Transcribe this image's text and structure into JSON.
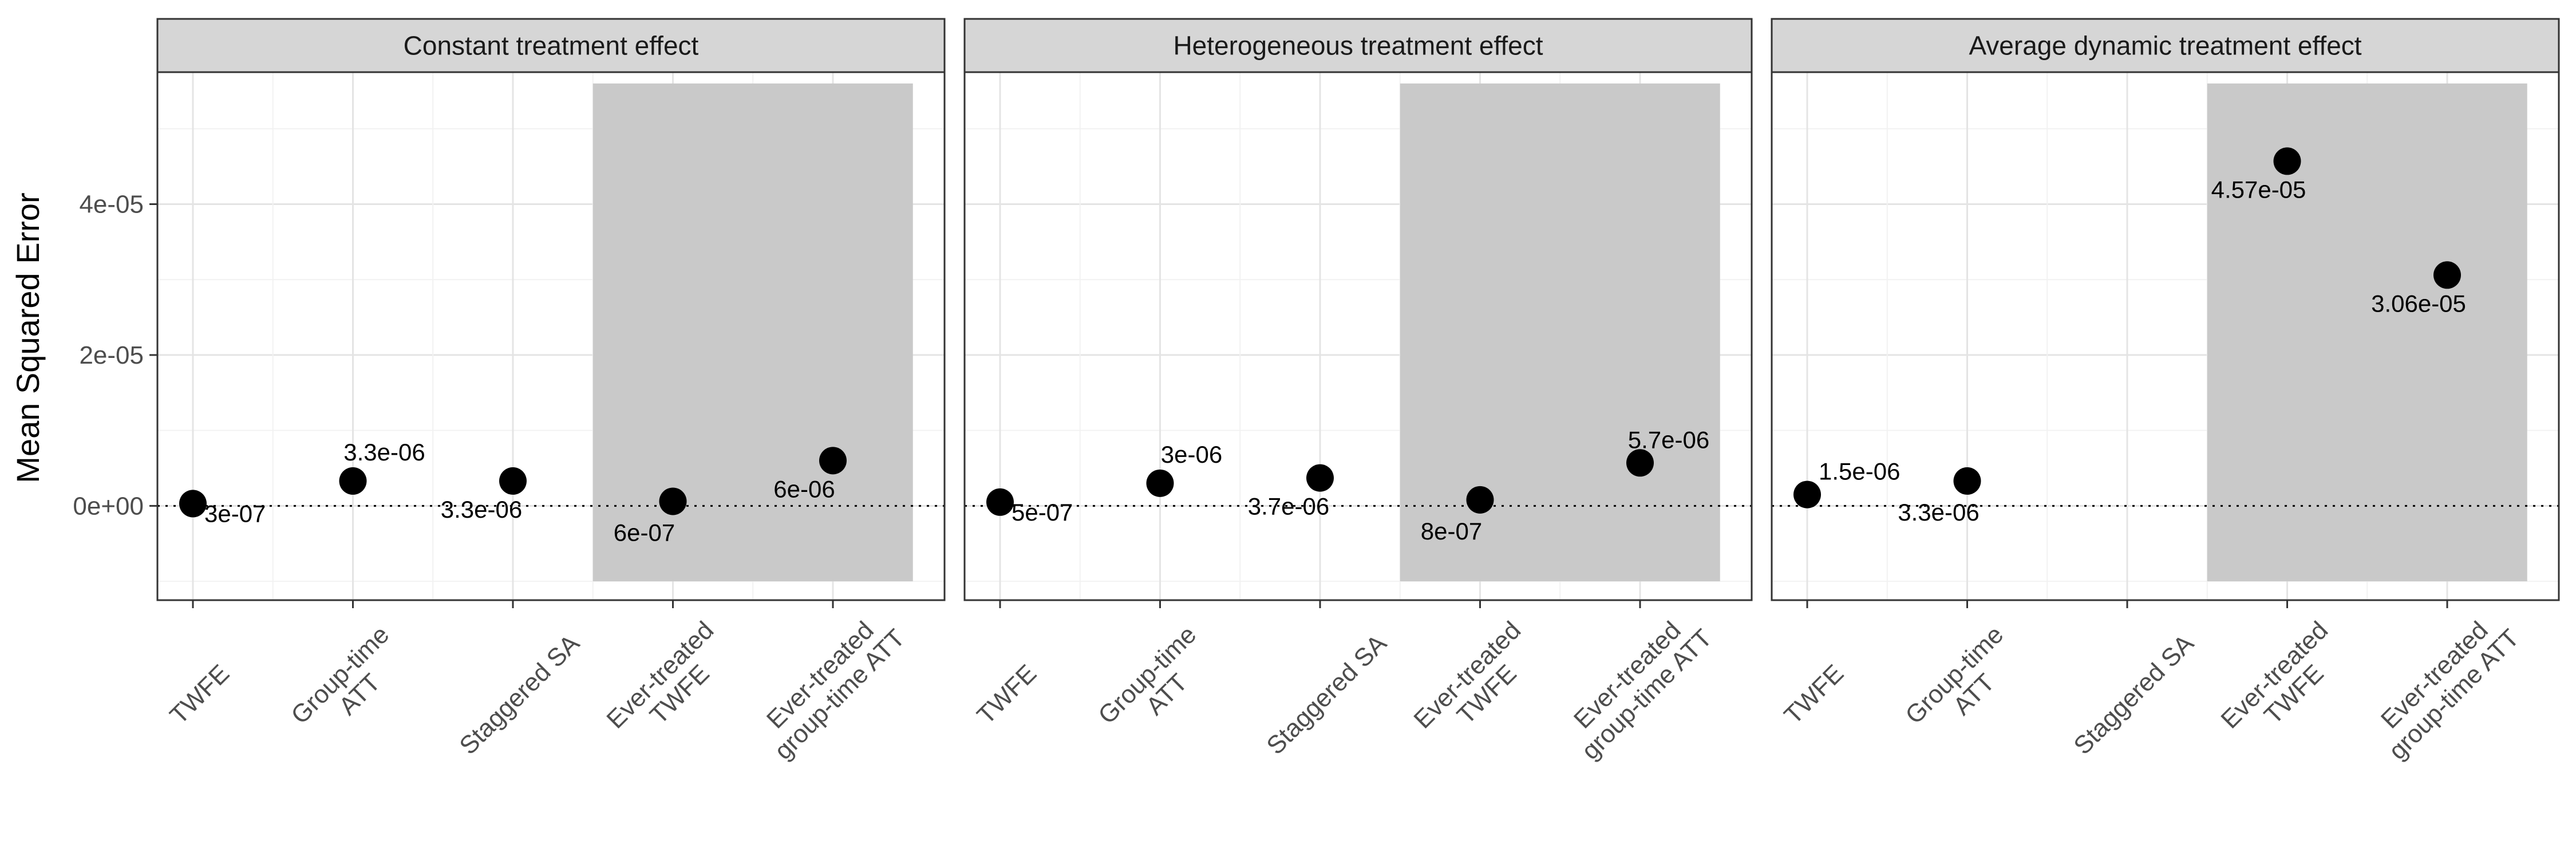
{
  "chart_data": {
    "type": "scatter",
    "ylabel": "Mean Squared Error",
    "y_ticks": [
      {
        "value": 0,
        "label": "0e+00"
      },
      {
        "value": 2e-05,
        "label": "2e-05"
      },
      {
        "value": 4e-05,
        "label": "4e-05"
      }
    ],
    "ylim": [
      -1.25e-05,
      5.75e-05
    ],
    "categories": [
      "TWFE",
      "Group-time\nATT",
      "Staggered SA",
      "Ever-treated\nTWFE",
      "Ever-treated\ngroup-time ATT"
    ],
    "shaded_categories": [
      "Ever-treated\nTWFE",
      "Ever-treated\ngroup-time ATT"
    ],
    "shade_y_range": [
      -1e-05,
      5.6e-05
    ],
    "reference_line": {
      "y": 0,
      "style": "dotted"
    },
    "panels": [
      {
        "title": "Constant treatment effect",
        "values": [
          3e-07,
          3.3e-06,
          3.3e-06,
          6e-07,
          6e-06
        ],
        "labels": [
          "3e-07",
          "3.3e-06",
          "3.3e-06",
          "6e-07",
          "6e-06"
        ]
      },
      {
        "title": "Heterogeneous treatment effect",
        "values": [
          5e-07,
          3e-06,
          3.7e-06,
          8e-07,
          5.7e-06
        ],
        "labels": [
          "5e-07",
          "3e-06",
          "3.7e-06",
          "8e-07",
          "5.7e-06"
        ]
      },
      {
        "title": "Average dynamic treatment effect",
        "values": [
          1.5e-06,
          3.3e-06,
          null,
          4.57e-05,
          3.06e-05
        ],
        "labels": [
          "1.5e-06",
          "3.3e-06",
          "",
          "4.57e-05",
          "3.06e-05"
        ]
      }
    ]
  }
}
